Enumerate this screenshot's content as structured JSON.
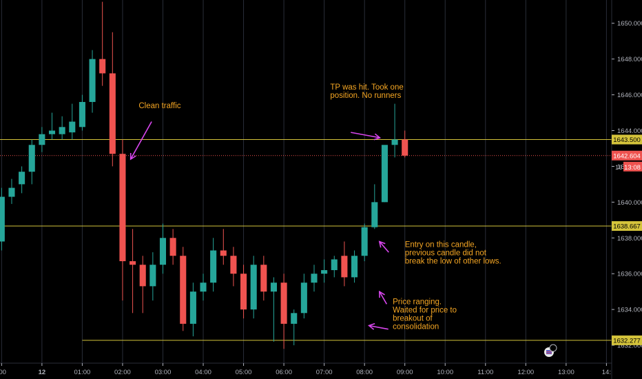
{
  "chart_data": {
    "type": "candlestick",
    "colors": {
      "up": "#26a69a",
      "down": "#ef5350",
      "hline": "#d4c33b",
      "current_line": "#ef5350",
      "annotation": "#f5a623",
      "arrow": "#d946ef",
      "grid": "#2a2e39",
      "axis_text": "#b2b5be",
      "background": "#000000"
    },
    "y_axis": {
      "ticks": [
        1650,
        1648,
        1646,
        1644,
        1642,
        1640,
        1638,
        1636,
        1634,
        1632
      ],
      "tick_labels": [
        "1650.000",
        "1648.000",
        "1646.000",
        "1644.000",
        "1642.000",
        "1640.000",
        "1638.000",
        "1636.000",
        "1634.000",
        "1632.000"
      ],
      "range": [
        1631,
        1651.3
      ]
    },
    "x_axis": {
      "ticks": [
        {
          "label": ":00",
          "t": -1.0
        },
        {
          "label": "12",
          "t": 0.0,
          "bold": true
        },
        {
          "label": "01:00",
          "t": 1.0
        },
        {
          "label": "02:00",
          "t": 2.0
        },
        {
          "label": "03:00",
          "t": 3.0
        },
        {
          "label": "04:00",
          "t": 4.0
        },
        {
          "label": "05:00",
          "t": 5.0
        },
        {
          "label": "06:00",
          "t": 6.0
        },
        {
          "label": "07:00",
          "t": 7.0
        },
        {
          "label": "08:00",
          "t": 8.0
        },
        {
          "label": "09:00",
          "t": 9.0
        },
        {
          "label": "10:00",
          "t": 10.0
        },
        {
          "label": "11:00",
          "t": 11.0
        },
        {
          "label": "12:00",
          "t": 12.0
        },
        {
          "label": "13:00",
          "t": 13.0
        },
        {
          "label": "14:",
          "t": 14.0
        }
      ],
      "range": [
        -1.04,
        14.13
      ]
    },
    "candles": [
      {
        "t": -1.0,
        "o": 1637.8,
        "h": 1640.8,
        "c": 1640.3,
        "l": 1637.3
      },
      {
        "t": -0.75,
        "o": 1640.3,
        "h": 1641.3,
        "c": 1640.8,
        "l": 1639.9
      },
      {
        "t": -0.5,
        "o": 1641.0,
        "h": 1642.0,
        "c": 1641.7,
        "l": 1640.5
      },
      {
        "t": -0.25,
        "o": 1641.7,
        "h": 1643.5,
        "c": 1643.2,
        "l": 1641.0
      },
      {
        "t": 0.0,
        "o": 1643.2,
        "h": 1644.2,
        "c": 1643.8,
        "l": 1642.8
      },
      {
        "t": 0.25,
        "o": 1643.8,
        "h": 1645.0,
        "c": 1644.0,
        "l": 1643.5
      },
      {
        "t": 0.5,
        "o": 1643.8,
        "h": 1644.8,
        "c": 1644.2,
        "l": 1643.5
      },
      {
        "t": 0.75,
        "o": 1643.9,
        "h": 1645.5,
        "c": 1644.5,
        "l": 1643.5
      },
      {
        "t": 1.0,
        "o": 1644.2,
        "h": 1646.0,
        "c": 1645.6,
        "l": 1644.0
      },
      {
        "t": 1.25,
        "o": 1645.6,
        "h": 1648.5,
        "c": 1648.0,
        "l": 1645.0
      },
      {
        "t": 1.5,
        "o": 1648.0,
        "h": 1651.2,
        "c": 1647.2,
        "l": 1646.5
      },
      {
        "t": 1.75,
        "o": 1647.2,
        "h": 1649.5,
        "c": 1642.7,
        "l": 1642.0
      },
      {
        "t": 2.0,
        "o": 1642.7,
        "h": 1643.5,
        "c": 1636.7,
        "l": 1634.5
      },
      {
        "t": 2.25,
        "o": 1636.7,
        "h": 1638.5,
        "c": 1636.5,
        "l": 1633.8
      },
      {
        "t": 2.5,
        "o": 1636.5,
        "h": 1637.0,
        "c": 1635.3,
        "l": 1633.8
      },
      {
        "t": 2.75,
        "o": 1635.3,
        "h": 1637.2,
        "c": 1636.5,
        "l": 1634.5
      },
      {
        "t": 3.0,
        "o": 1636.5,
        "h": 1638.8,
        "c": 1638.0,
        "l": 1636.0
      },
      {
        "t": 3.25,
        "o": 1638.0,
        "h": 1638.5,
        "c": 1637.0,
        "l": 1636.5
      },
      {
        "t": 3.5,
        "o": 1637.0,
        "h": 1637.5,
        "c": 1633.2,
        "l": 1632.8
      },
      {
        "t": 3.75,
        "o": 1633.2,
        "h": 1635.5,
        "c": 1635.0,
        "l": 1632.5
      },
      {
        "t": 4.0,
        "o": 1635.0,
        "h": 1636.0,
        "c": 1635.5,
        "l": 1634.5
      },
      {
        "t": 4.25,
        "o": 1635.5,
        "h": 1638.0,
        "c": 1637.3,
        "l": 1635.0
      },
      {
        "t": 4.5,
        "o": 1637.3,
        "h": 1638.5,
        "c": 1637.0,
        "l": 1636.5
      },
      {
        "t": 4.75,
        "o": 1637.0,
        "h": 1637.5,
        "c": 1636.0,
        "l": 1635.3
      },
      {
        "t": 5.0,
        "o": 1636.0,
        "h": 1636.5,
        "c": 1634.0,
        "l": 1633.5
      },
      {
        "t": 5.25,
        "o": 1634.0,
        "h": 1637.0,
        "c": 1636.5,
        "l": 1633.5
      },
      {
        "t": 5.5,
        "o": 1636.5,
        "h": 1637.0,
        "c": 1635.0,
        "l": 1634.5
      },
      {
        "t": 5.75,
        "o": 1635.0,
        "h": 1635.8,
        "c": 1635.5,
        "l": 1632.2
      },
      {
        "t": 6.0,
        "o": 1635.5,
        "h": 1636.0,
        "c": 1633.2,
        "l": 1631.8
      },
      {
        "t": 6.25,
        "o": 1633.2,
        "h": 1634.0,
        "c": 1633.8,
        "l": 1632.0
      },
      {
        "t": 6.5,
        "o": 1633.8,
        "h": 1636.0,
        "c": 1635.5,
        "l": 1633.5
      },
      {
        "t": 6.75,
        "o": 1635.5,
        "h": 1636.5,
        "c": 1636.0,
        "l": 1635.0
      },
      {
        "t": 7.0,
        "o": 1636.0,
        "h": 1636.8,
        "c": 1636.2,
        "l": 1635.5
      },
      {
        "t": 7.25,
        "o": 1636.2,
        "h": 1637.0,
        "c": 1636.8,
        "l": 1635.8
      },
      {
        "t": 7.5,
        "o": 1637.0,
        "h": 1637.8,
        "c": 1635.8,
        "l": 1635.3
      },
      {
        "t": 7.75,
        "o": 1635.8,
        "h": 1637.3,
        "c": 1637.0,
        "l": 1635.5
      },
      {
        "t": 8.0,
        "o": 1637.0,
        "h": 1638.8,
        "c": 1638.6,
        "l": 1636.7
      },
      {
        "t": 8.25,
        "o": 1638.6,
        "h": 1641.0,
        "c": 1640.0,
        "l": 1638.5
      },
      {
        "t": 8.5,
        "o": 1640.0,
        "h": 1643.0,
        "c": 1643.2,
        "l": 1640.0
      },
      {
        "t": 8.75,
        "o": 1643.2,
        "h": 1645.5,
        "c": 1643.5,
        "l": 1642.5
      },
      {
        "t": 9.0,
        "o": 1643.5,
        "h": 1644.0,
        "c": 1642.6,
        "l": 1642.5
      }
    ],
    "horizontal_lines": [
      {
        "price": 1643.5,
        "label": "1643.500",
        "style": "solid",
        "color_key": "hline"
      },
      {
        "price": 1642.604,
        "label": "1642.604",
        "style": "dotted",
        "color_key": "current_line"
      },
      {
        "price": 1638.667,
        "label": "1638.667",
        "style": "solid",
        "color_key": "hline"
      },
      {
        "price": 1632.277,
        "label": "1632.277",
        "style": "solid",
        "color_key": "hline",
        "x_start": 1.0
      }
    ],
    "current_price_badge": {
      "price": 1642.604,
      "label": "1642.604",
      "countdown": "13:08",
      "partial_label": "16"
    },
    "annotations": [
      {
        "lines": [
          "Clean traffic"
        ],
        "anchor": [
          2.4,
          1645.25
        ]
      },
      {
        "lines": [
          "TP was hit. Took one",
          "position. No runners"
        ],
        "anchor": [
          7.15,
          1646.3
        ]
      },
      {
        "lines": [
          "Entry on this candle,",
          "previous candle did not",
          "break the low of other lows."
        ],
        "anchor": [
          9.0,
          1637.5
        ]
      },
      {
        "lines": [
          "Price ranging.",
          "Waited for price to",
          "breakout of",
          "consolidation"
        ],
        "anchor": [
          8.7,
          1634.3
        ]
      }
    ],
    "arrows": [
      {
        "from": [
          2.72,
          1644.5
        ],
        "to": [
          2.2,
          1642.4
        ]
      },
      {
        "from": [
          7.66,
          1643.9
        ],
        "to": [
          8.38,
          1643.6
        ]
      },
      {
        "from": [
          8.6,
          1637.2
        ],
        "to": [
          8.37,
          1637.8
        ]
      },
      {
        "from": [
          8.55,
          1634.3
        ],
        "to": [
          8.37,
          1635.0
        ]
      },
      {
        "from": [
          8.59,
          1632.9
        ],
        "to": [
          8.11,
          1633.1
        ]
      }
    ]
  }
}
